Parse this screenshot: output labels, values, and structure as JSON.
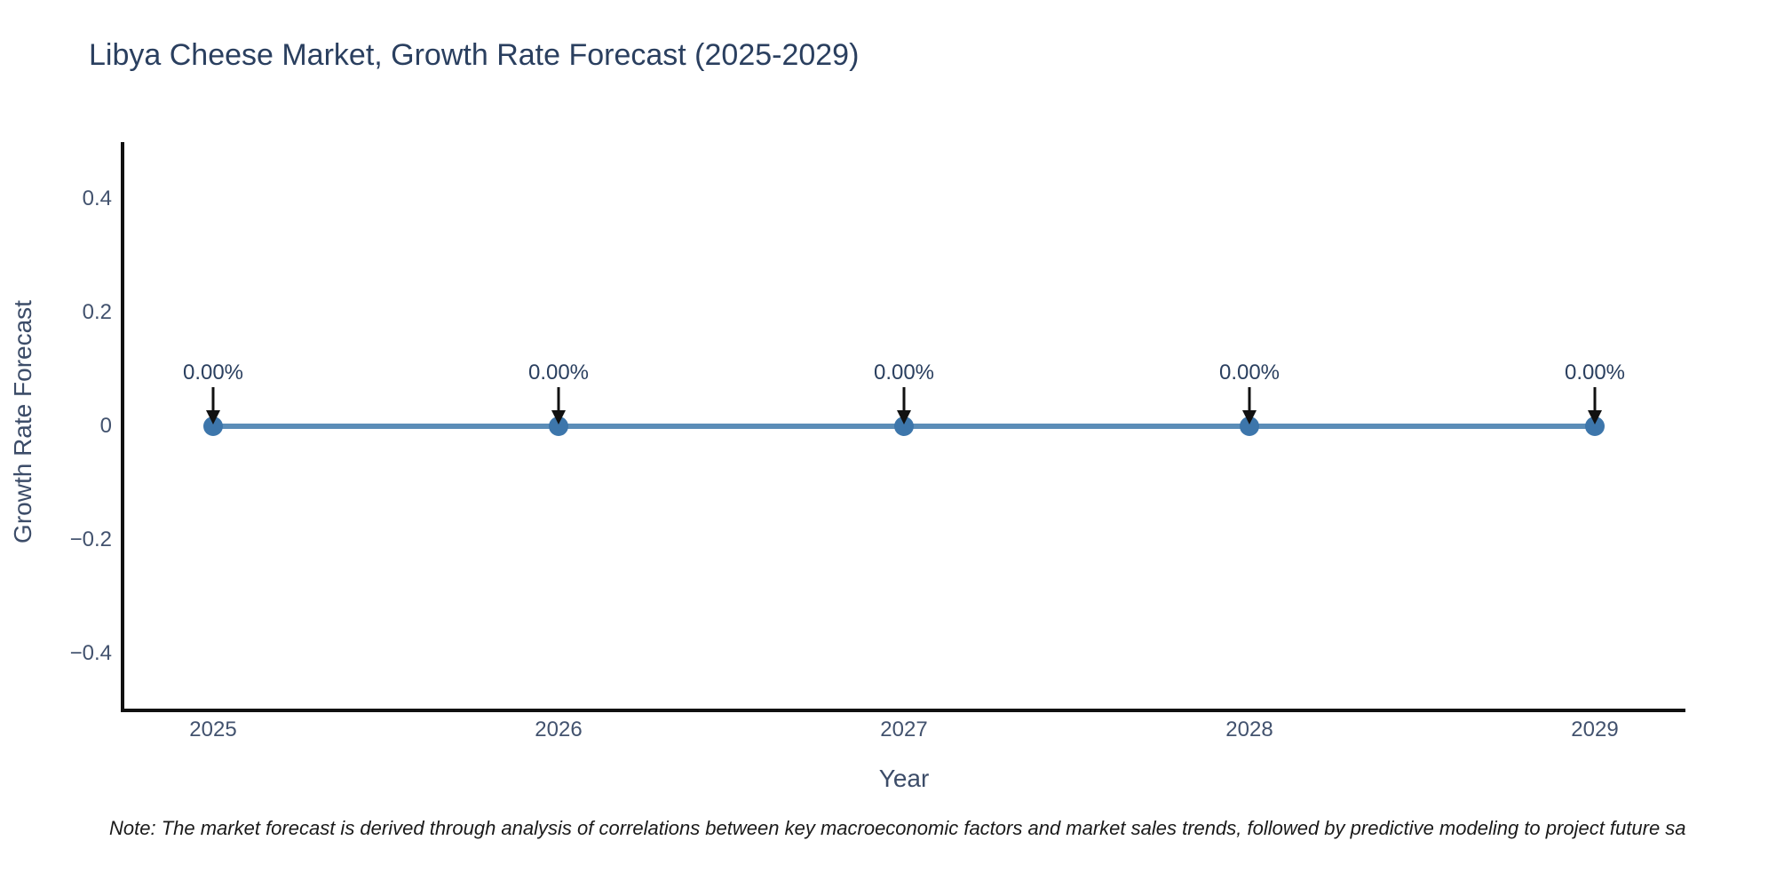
{
  "title": "Libya Cheese Market, Growth Rate Forecast (2025-2029)",
  "note": "Note: The market forecast is derived through analysis of correlations between key macroeconomic factors and market sales trends, followed by predictive modeling to project future sa",
  "chart_data": {
    "type": "line",
    "title": "Libya Cheese Market, Growth Rate Forecast (2025-2029)",
    "xlabel": "Year",
    "ylabel": "Growth Rate Forecast",
    "categories": [
      "2025",
      "2026",
      "2027",
      "2028",
      "2029"
    ],
    "series": [
      {
        "name": "Growth Rate Forecast",
        "values": [
          0,
          0,
          0,
          0,
          0
        ]
      }
    ],
    "point_labels": [
      "0.00%",
      "0.00%",
      "0.00%",
      "0.00%",
      "0.00%"
    ],
    "ylim": [
      -0.5,
      0.5
    ],
    "yticks": [
      0.4,
      0.2,
      0,
      -0.2,
      -0.4
    ],
    "ytick_labels": [
      "0.4",
      "0.2",
      "0",
      "−0.2",
      "−0.4"
    ],
    "xtick_labels": [
      "2025",
      "2026",
      "2027",
      "2028",
      "2029"
    ],
    "grid": false,
    "legend_position": "none",
    "annotation_style": "down-arrow-to-point",
    "colors": {
      "line": "#5b8db8",
      "marker": "#3d76ab",
      "axis": "#111111",
      "arrow": "#111111",
      "title_text": "#2a3f5f",
      "tick_text": "#42526e",
      "note_text": "#1a1a1a"
    }
  }
}
